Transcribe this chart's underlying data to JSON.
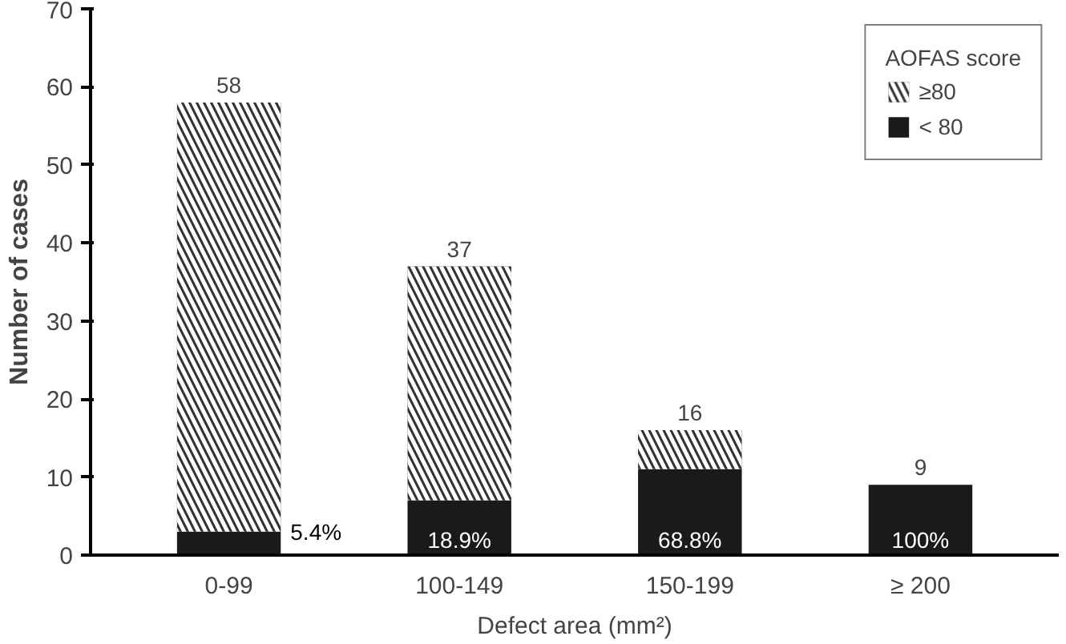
{
  "chart_data": {
    "type": "bar",
    "stacked": true,
    "xlabel": "Defect area (mm²)",
    "ylabel": "Number of cases",
    "legend_title": "AOFAS score",
    "categories": [
      "0-99",
      "100-149",
      "150-199",
      "≥ 200"
    ],
    "series": [
      {
        "name": "< 80",
        "color": "#1a1a1a",
        "values": [
          3,
          7,
          11,
          9
        ]
      },
      {
        "name": "≥80",
        "color": "#333333",
        "values": [
          55,
          30,
          5,
          0
        ]
      }
    ],
    "totals": [
      "58",
      "37",
      "16",
      "9"
    ],
    "annotations": [
      "5.4%",
      "18.9%",
      "68.8%",
      "100%"
    ],
    "ylim": [
      0,
      70
    ],
    "yticks": [
      0,
      10,
      20,
      30,
      40,
      50,
      60,
      70
    ],
    "grid": false,
    "legend": "top right"
  }
}
